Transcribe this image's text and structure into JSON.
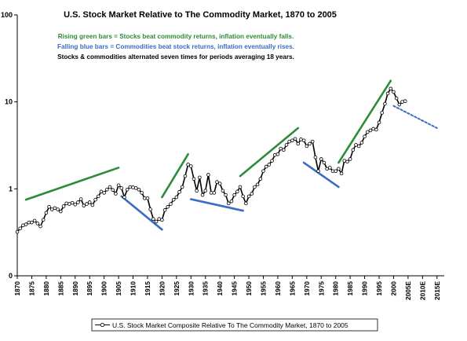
{
  "chart_data": {
    "type": "line",
    "title": "U.S. Stock Market Relative to The Commodity Market, 1870 to 2005",
    "annotations": [
      {
        "text": "Rising green bars = Stocks beat commodity returns, inflation eventually falls.",
        "color": "#2e8b3a"
      },
      {
        "text": "Falling blue bars = Commodities beat stock returns, inflation eventually rises.",
        "color": "#3b6cc4"
      },
      {
        "text": "Stocks & commodities alternated seven times for periods averaging 18 years.",
        "color": "#000000"
      }
    ],
    "y_scale": "log",
    "ylim": [
      0.1,
      100
    ],
    "y_ticks": [
      {
        "value": 0.1,
        "label": "0"
      },
      {
        "value": 1,
        "label": "1"
      },
      {
        "value": 10,
        "label": "10"
      },
      {
        "value": 100,
        "label": "100"
      }
    ],
    "xlim": [
      1870,
      2017.5
    ],
    "x_ticks": [
      {
        "value": 1870,
        "label": "1870"
      },
      {
        "value": 1875,
        "label": "1875"
      },
      {
        "value": 1880,
        "label": "1880"
      },
      {
        "value": 1885,
        "label": "1885"
      },
      {
        "value": 1890,
        "label": "1890"
      },
      {
        "value": 1895,
        "label": "1895"
      },
      {
        "value": 1900,
        "label": "1900"
      },
      {
        "value": 1905,
        "label": "1905"
      },
      {
        "value": 1910,
        "label": "1910"
      },
      {
        "value": 1915,
        "label": "1915"
      },
      {
        "value": 1920,
        "label": "1920"
      },
      {
        "value": 1925,
        "label": "1925"
      },
      {
        "value": 1930,
        "label": "1930"
      },
      {
        "value": 1935,
        "label": "1935"
      },
      {
        "value": 1940,
        "label": "1940"
      },
      {
        "value": 1945,
        "label": "1945"
      },
      {
        "value": 1950,
        "label": "1950"
      },
      {
        "value": 1955,
        "label": "1955"
      },
      {
        "value": 1960,
        "label": "1960"
      },
      {
        "value": 1965,
        "label": "1965"
      },
      {
        "value": 1970,
        "label": "1970"
      },
      {
        "value": 1975,
        "label": "1975"
      },
      {
        "value": 1980,
        "label": "1980"
      },
      {
        "value": 1985,
        "label": "1985"
      },
      {
        "value": 1990,
        "label": "1990"
      },
      {
        "value": 1995,
        "label": "1995"
      },
      {
        "value": 2000,
        "label": "2000"
      },
      {
        "value": 2005,
        "label": "2005E"
      },
      {
        "value": 2010,
        "label": "2010E"
      },
      {
        "value": 2015,
        "label": "2015E"
      }
    ],
    "grid": false,
    "legend_position": "bottom",
    "series": [
      {
        "name": "U.S. Stock Market Composite Relative To The Commodity Market, 1870 to 2005",
        "color": "#000000",
        "marker": "open-circle",
        "x": [
          1870,
          1871,
          1872,
          1873,
          1874,
          1875,
          1876,
          1877,
          1878,
          1879,
          1880,
          1881,
          1882,
          1883,
          1884,
          1885,
          1886,
          1887,
          1888,
          1889,
          1890,
          1891,
          1892,
          1893,
          1894,
          1895,
          1896,
          1897,
          1898,
          1899,
          1900,
          1901,
          1902,
          1903,
          1904,
          1905,
          1906,
          1907,
          1908,
          1909,
          1910,
          1911,
          1912,
          1913,
          1914,
          1915,
          1916,
          1917,
          1918,
          1919,
          1920,
          1921,
          1922,
          1923,
          1924,
          1925,
          1926,
          1927,
          1928,
          1929,
          1930,
          1931,
          1932,
          1933,
          1934,
          1935,
          1936,
          1937,
          1938,
          1939,
          1940,
          1941,
          1942,
          1943,
          1944,
          1945,
          1946,
          1947,
          1948,
          1949,
          1950,
          1951,
          1952,
          1953,
          1954,
          1955,
          1956,
          1957,
          1958,
          1959,
          1960,
          1961,
          1962,
          1963,
          1964,
          1965,
          1966,
          1967,
          1968,
          1969,
          1970,
          1971,
          1972,
          1973,
          1974,
          1975,
          1976,
          1977,
          1978,
          1979,
          1980,
          1981,
          1982,
          1983,
          1984,
          1985,
          1986,
          1987,
          1988,
          1989,
          1990,
          1991,
          1992,
          1993,
          1994,
          1995,
          1996,
          1997,
          1998,
          1999,
          2000,
          2001,
          2002,
          2003,
          2004
        ],
        "y": [
          0.32,
          0.35,
          0.38,
          0.39,
          0.41,
          0.41,
          0.43,
          0.4,
          0.37,
          0.44,
          0.53,
          0.62,
          0.58,
          0.6,
          0.58,
          0.55,
          0.63,
          0.68,
          0.67,
          0.69,
          0.66,
          0.7,
          0.76,
          0.64,
          0.67,
          0.7,
          0.65,
          0.75,
          0.82,
          0.93,
          0.9,
          0.98,
          1.05,
          0.97,
          0.88,
          1.1,
          1.02,
          0.8,
          0.98,
          1.05,
          1.04,
          1.02,
          0.98,
          0.9,
          0.78,
          0.78,
          0.58,
          0.45,
          0.42,
          0.45,
          0.44,
          0.57,
          0.62,
          0.67,
          0.75,
          0.8,
          0.92,
          1.05,
          1.4,
          1.9,
          1.82,
          1.3,
          0.95,
          1.35,
          0.85,
          0.95,
          1.45,
          0.9,
          0.9,
          1.2,
          1.15,
          0.95,
          0.85,
          0.68,
          0.72,
          0.85,
          0.93,
          1.05,
          0.82,
          0.68,
          0.82,
          0.88,
          1.05,
          1.12,
          1.3,
          1.6,
          1.8,
          1.9,
          2.1,
          2.45,
          2.5,
          2.9,
          2.8,
          3.2,
          3.5,
          3.6,
          3.75,
          3.3,
          3.7,
          3.6,
          3.1,
          3.3,
          3.5,
          2.3,
          1.6,
          2.2,
          2.0,
          1.7,
          1.75,
          1.6,
          1.6,
          1.7,
          1.5,
          2.1,
          2.05,
          2.2,
          2.8,
          3.2,
          3.1,
          3.4,
          4.0,
          4.5,
          4.7,
          4.9,
          4.8,
          5.8,
          7.5,
          9.5,
          12.5,
          14.2,
          13.0,
          11.0,
          9.3,
          10.0,
          10.2
        ]
      }
    ],
    "trend_segments": [
      {
        "kind": "rising",
        "color": "#2e8b3a",
        "from": [
          1873,
          0.75
        ],
        "to": [
          1905,
          1.75
        ]
      },
      {
        "kind": "rising",
        "color": "#2e8b3a",
        "from": [
          1920,
          0.8
        ],
        "to": [
          1929,
          2.5
        ]
      },
      {
        "kind": "rising",
        "color": "#2e8b3a",
        "from": [
          1947,
          1.4
        ],
        "to": [
          1967,
          5.0
        ]
      },
      {
        "kind": "rising",
        "color": "#2e8b3a",
        "from": [
          1981,
          2.0
        ],
        "to": [
          1999,
          17.5
        ]
      },
      {
        "kind": "falling",
        "color": "#3b6cc4",
        "from": [
          1906,
          0.82
        ],
        "to": [
          1920,
          0.34
        ]
      },
      {
        "kind": "falling",
        "color": "#3b6cc4",
        "from": [
          1930,
          0.76
        ],
        "to": [
          1948,
          0.56
        ]
      },
      {
        "kind": "falling",
        "color": "#3b6cc4",
        "from": [
          1969,
          2.0
        ],
        "to": [
          1981,
          1.05
        ]
      },
      {
        "kind": "projection",
        "color": "#3b6cc4",
        "dashed": true,
        "from": [
          2000,
          9.0
        ],
        "to": [
          2015,
          5.0
        ]
      }
    ]
  }
}
